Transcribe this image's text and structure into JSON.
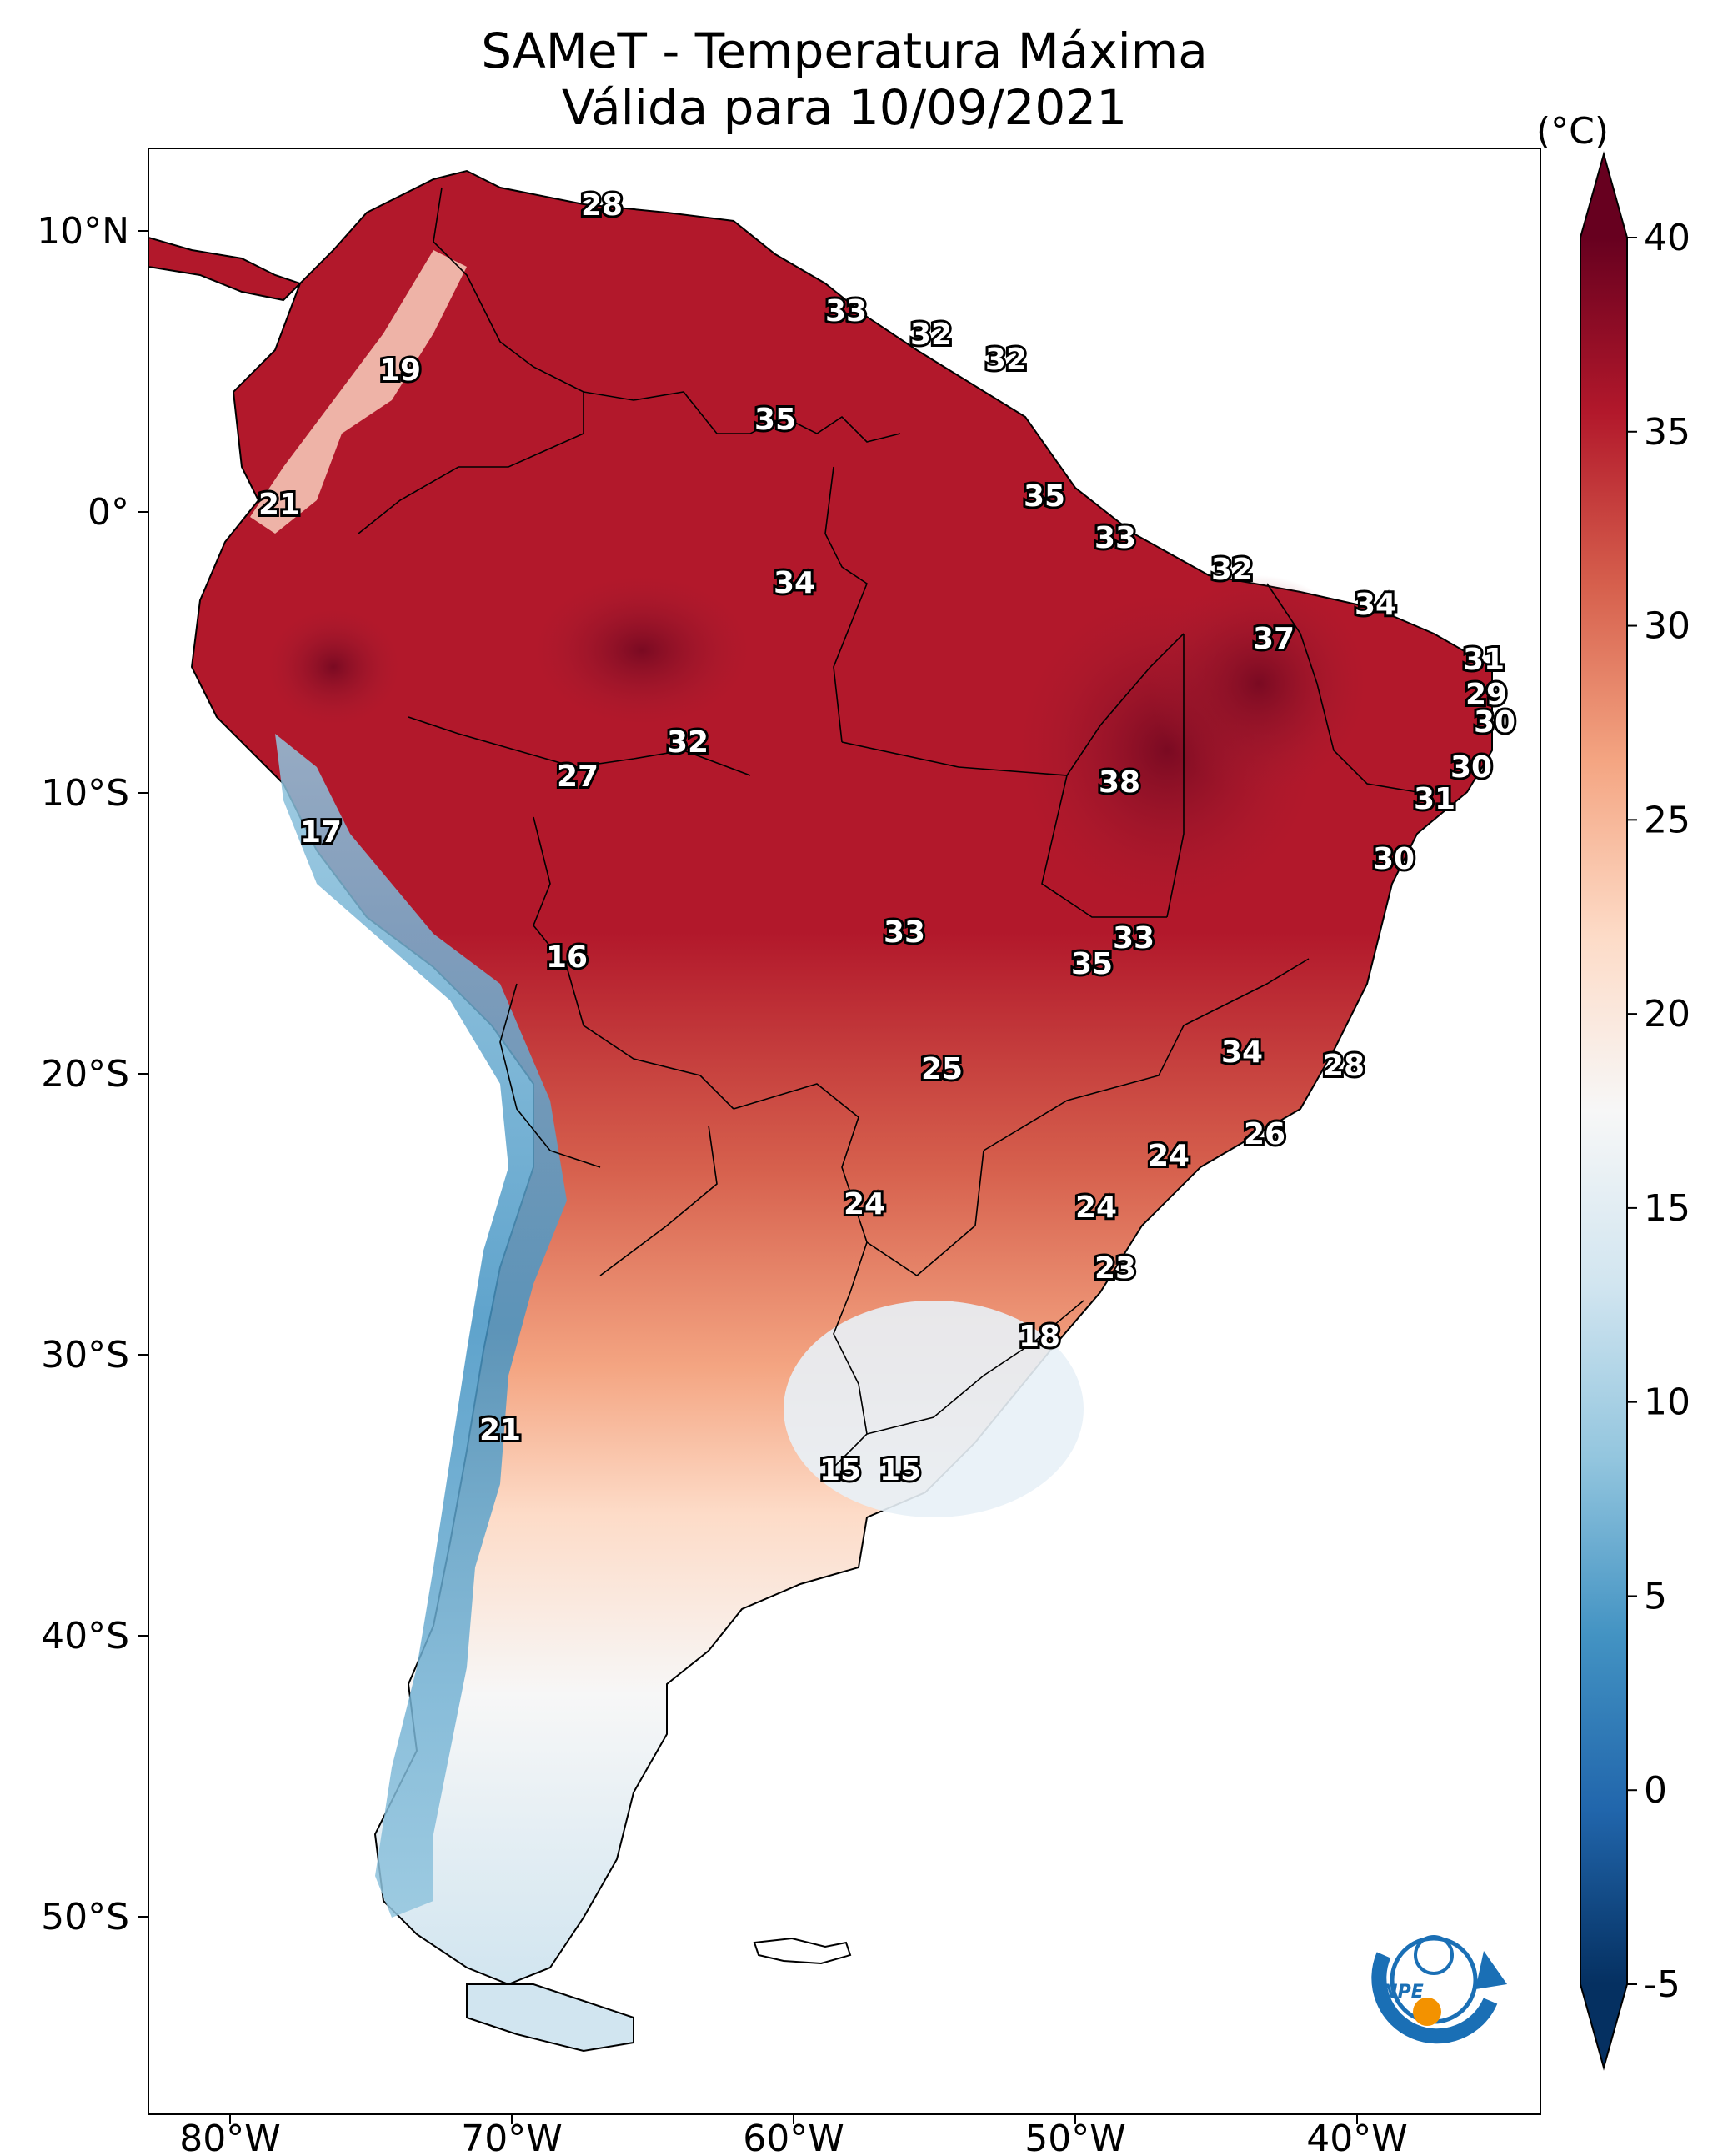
{
  "title": {
    "line1": "SAMeT - Temperatura Máxima",
    "line2": "Válida para 10/09/2021"
  },
  "axes": {
    "lon_ticks": [
      "80°W",
      "70°W",
      "60°W",
      "50°W",
      "40°W"
    ],
    "lat_ticks": [
      "10°N",
      "0°",
      "10°S",
      "20°S",
      "30°S",
      "40°S",
      "50°S"
    ]
  },
  "colorbar": {
    "unit": "(°C)",
    "ticks": [
      "40",
      "35",
      "30",
      "25",
      "20",
      "15",
      "10",
      "5",
      "0",
      "-5"
    ],
    "range": [
      -5,
      40
    ],
    "colors": [
      "#053061",
      "#2166ac",
      "#4393c3",
      "#92c5de",
      "#d1e5f0",
      "#f7f7f7",
      "#fddbc7",
      "#f4a582",
      "#d6604d",
      "#b2182b",
      "#67001f"
    ]
  },
  "contour_labels": [
    "28",
    "33",
    "32",
    "32",
    "19",
    "35",
    "35",
    "21",
    "33",
    "34",
    "32",
    "34",
    "37",
    "31",
    "29",
    "30",
    "30",
    "31",
    "38",
    "32",
    "27",
    "17",
    "30",
    "33",
    "33",
    "35",
    "16",
    "34",
    "28",
    "25",
    "26",
    "24",
    "24",
    "24",
    "23",
    "18",
    "21",
    "15",
    "15"
  ],
  "logo": {
    "text": "INPE",
    "colors": [
      "#1a6fb5",
      "#f39200"
    ]
  }
}
